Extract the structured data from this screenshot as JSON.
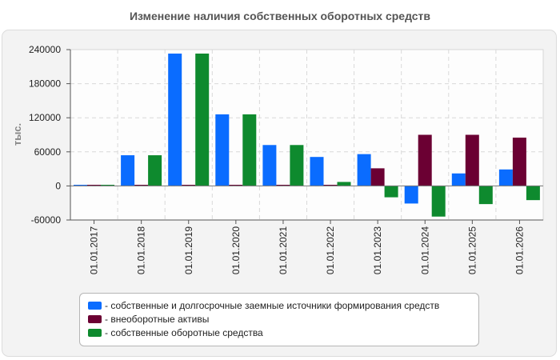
{
  "chart_data": {
    "type": "bar",
    "title": "Изменение наличия собственных оборотных средств",
    "ylabel": "тыс.",
    "xlabel": "",
    "ylim": [
      -60000,
      240000
    ],
    "yticks": [
      240000,
      180000,
      120000,
      60000,
      0,
      -60000
    ],
    "grid": true,
    "legend_position": "bottom",
    "categories": [
      "01.01.2017",
      "01.01.2018",
      "01.01.2019",
      "01.01.2020",
      "01.01.2021",
      "01.01.2022",
      "01.01.2023",
      "01.01.2024",
      "01.01.2025",
      "01.01.2026"
    ],
    "series": [
      {
        "name": "- собственные и долгосрочные заемные источники формирования средств",
        "color": "#0a6cff",
        "values": [
          2000,
          54000,
          233000,
          126000,
          72000,
          51000,
          56000,
          -31000,
          22000,
          29000
        ]
      },
      {
        "name": "- внеоборотные активы",
        "color": "#6b0033",
        "values": [
          2000,
          2000,
          2000,
          2000,
          2000,
          2000,
          31000,
          90000,
          90000,
          85000
        ]
      },
      {
        "name": "- собственные оборотные средства",
        "color": "#0e8a2e",
        "values": [
          2000,
          54000,
          233000,
          126000,
          72000,
          7000,
          -20000,
          -54000,
          -32000,
          -25000
        ]
      }
    ]
  }
}
